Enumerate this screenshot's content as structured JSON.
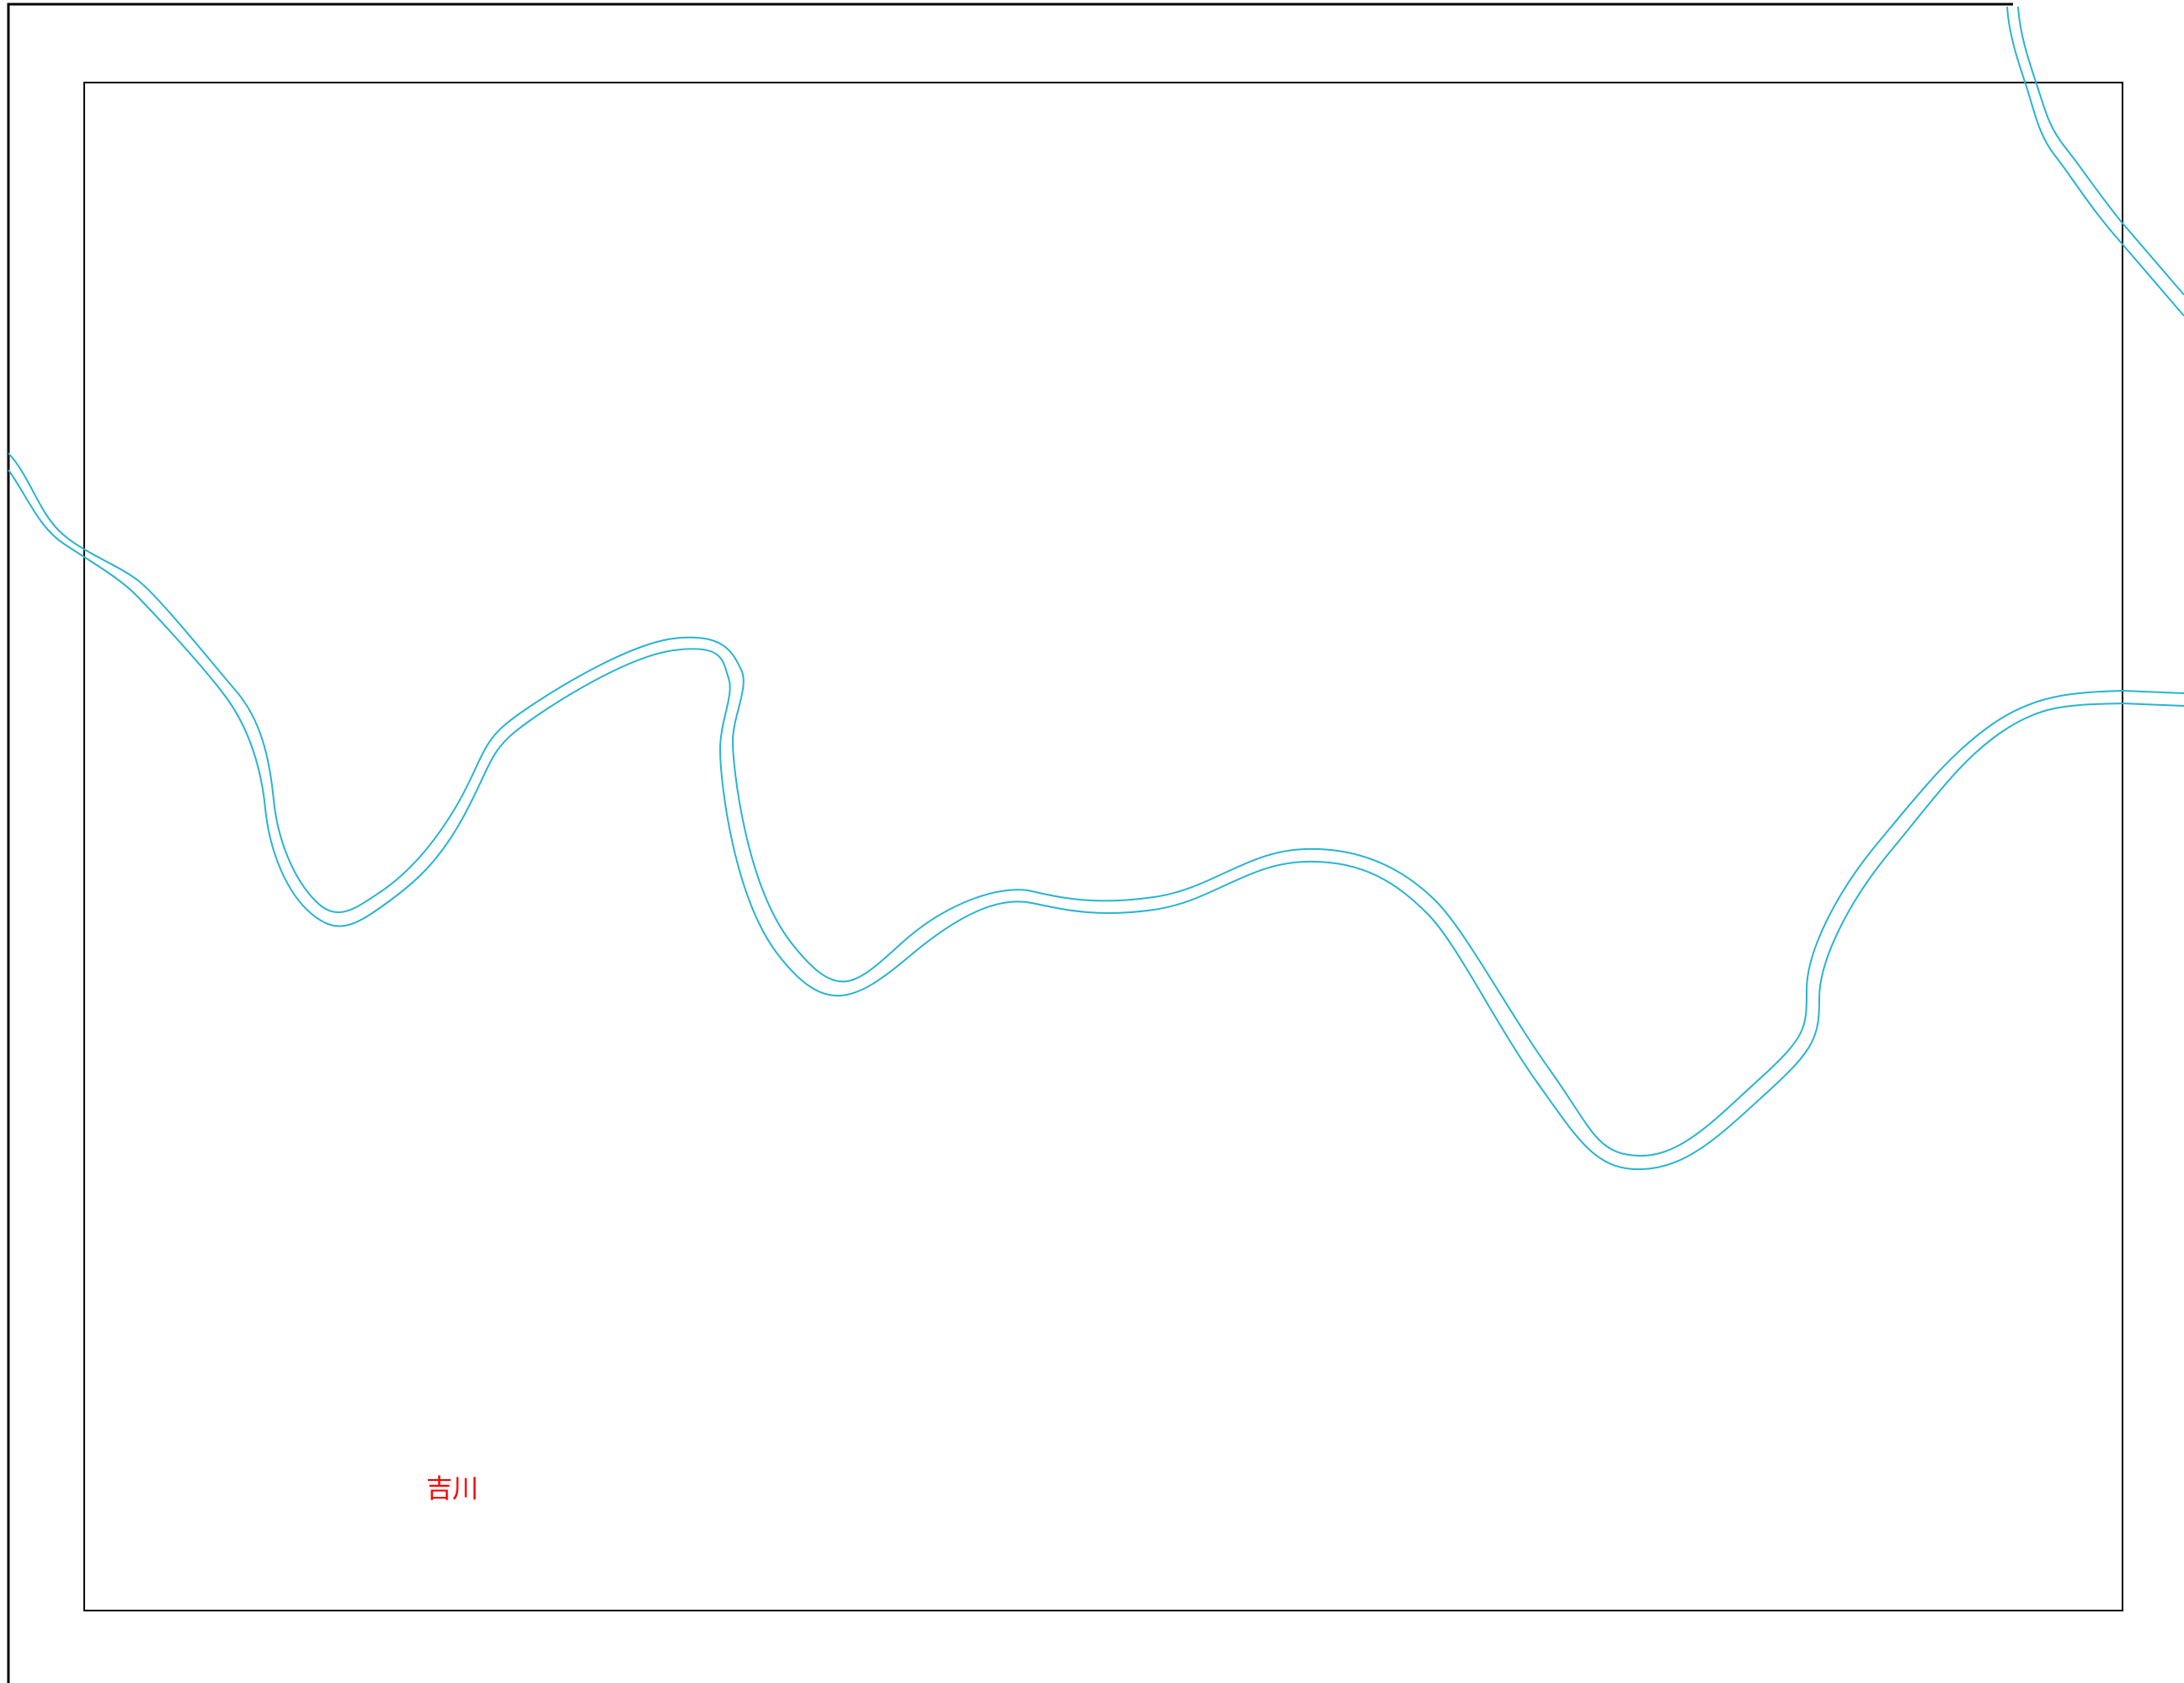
{
  "map": {
    "labels": {
      "place": "吉川"
    },
    "colors": {
      "background": "#ffffff",
      "frame": "#000000",
      "river": "#28b4d2",
      "label": "#ff0000"
    }
  }
}
